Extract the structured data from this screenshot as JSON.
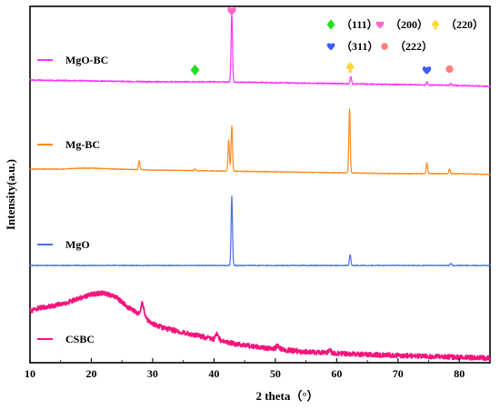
{
  "chart_data": {
    "type": "line",
    "xlabel": "2 theta（°）",
    "ylabel": "Intensity(a.u.)",
    "xlim": [
      10,
      85
    ],
    "x_ticks": [
      10,
      20,
      30,
      40,
      50,
      60,
      70,
      80
    ],
    "y_ticks_shown": false,
    "grid": false,
    "series": [
      {
        "name": "MgO-BC",
        "color": "#ff33ff",
        "label_x": 13,
        "baseline": [
          [
            10,
            88
          ],
          [
            20,
            89
          ],
          [
            30,
            90
          ],
          [
            40,
            90
          ],
          [
            50,
            91
          ],
          [
            60,
            92
          ],
          [
            70,
            93
          ],
          [
            80,
            94
          ],
          [
            85,
            95
          ]
        ],
        "peaks": [
          {
            "x": 42.9,
            "h": 76
          },
          {
            "x": 62.3,
            "h": 8
          },
          {
            "x": 74.7,
            "h": 3
          },
          {
            "x": 78.6,
            "h": 2
          }
        ]
      },
      {
        "name": "Mg-BC",
        "color": "#ff8a1f",
        "label_x": 13,
        "baseline": [
          [
            10,
            186
          ],
          [
            15,
            186
          ],
          [
            18,
            185
          ],
          [
            20,
            185
          ],
          [
            24,
            186
          ],
          [
            30,
            187
          ],
          [
            40,
            188
          ],
          [
            50,
            189
          ],
          [
            60,
            190
          ],
          [
            70,
            191
          ],
          [
            80,
            191
          ],
          [
            85,
            192
          ]
        ],
        "peaks": [
          {
            "x": 27.8,
            "h": 10
          },
          {
            "x": 36.9,
            "h": 2
          },
          {
            "x": 42.4,
            "h": 34
          },
          {
            "x": 42.9,
            "h": 50
          },
          {
            "x": 62.1,
            "h": 70
          },
          {
            "x": 74.7,
            "h": 12
          },
          {
            "x": 78.4,
            "h": 5
          }
        ]
      },
      {
        "name": "MgO",
        "color": "#4a6fe3",
        "label_x": 13,
        "baseline": [
          [
            10,
            292
          ],
          [
            20,
            292
          ],
          [
            30,
            292
          ],
          [
            40,
            292
          ],
          [
            50,
            292
          ],
          [
            60,
            292
          ],
          [
            70,
            292
          ],
          [
            80,
            292
          ],
          [
            85,
            292
          ]
        ],
        "peaks": [
          {
            "x": 42.9,
            "h": 76
          },
          {
            "x": 62.2,
            "h": 12
          },
          {
            "x": 78.6,
            "h": 2
          }
        ]
      },
      {
        "name": "CSBC",
        "color": "#f5147c",
        "label_x": 13,
        "baseline": [
          [
            10,
            342
          ],
          [
            12,
            338
          ],
          [
            14,
            336
          ],
          [
            16,
            333
          ],
          [
            18,
            328
          ],
          [
            20,
            324
          ],
          [
            22,
            322
          ],
          [
            24,
            327
          ],
          [
            26,
            338
          ],
          [
            28,
            347
          ],
          [
            30,
            356
          ],
          [
            32,
            361
          ],
          [
            35,
            366
          ],
          [
            38,
            370
          ],
          [
            40,
            374
          ],
          [
            45,
            380
          ],
          [
            50,
            384
          ],
          [
            55,
            387
          ],
          [
            60,
            389
          ],
          [
            65,
            390
          ],
          [
            70,
            391
          ],
          [
            75,
            392
          ],
          [
            80,
            393
          ],
          [
            85,
            394
          ]
        ],
        "peaks": [
          {
            "x": 28.3,
            "h": 14
          },
          {
            "x": 40.5,
            "h": 8
          },
          {
            "x": 50.4,
            "h": 4
          },
          {
            "x": 58.8,
            "h": 3
          }
        ]
      }
    ],
    "markers": [
      {
        "series": "MgO-BC",
        "x": 36.9,
        "shape": "diamond",
        "color": "#22dd22"
      },
      {
        "series": "MgO-BC",
        "x": 42.9,
        "shape": "heart",
        "color": "#ff66cc"
      },
      {
        "series": "MgO-BC",
        "x": 62.2,
        "shape": "spade",
        "color": "#ffd633"
      },
      {
        "series": "MgO-BC",
        "x": 74.7,
        "shape": "heart",
        "color": "#3d5cff"
      },
      {
        "series": "MgO-BC",
        "x": 78.4,
        "shape": "circle",
        "color": "#ff7f7f"
      }
    ],
    "legend": [
      {
        "shape": "diamond",
        "color": "#22dd22",
        "label": "（111）"
      },
      {
        "shape": "heart",
        "color": "#ff66cc",
        "label": "（200）"
      },
      {
        "shape": "spade",
        "color": "#ffd633",
        "label": "（220）"
      },
      {
        "shape": "heart",
        "color": "#3d5cff",
        "label": "（311）"
      },
      {
        "shape": "circle",
        "color": "#ff7f7f",
        "label": "（222）"
      }
    ]
  }
}
